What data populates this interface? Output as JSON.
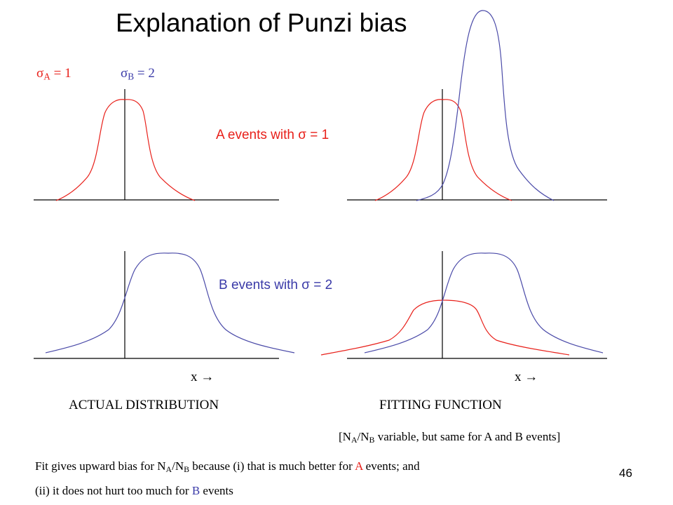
{
  "title": "Explanation of Punzi bias",
  "sigma_a": {
    "symbol": "σ",
    "sub": "A",
    "value": " = 1"
  },
  "sigma_b": {
    "symbol": "σ",
    "sub": "B",
    "value": " = 2"
  },
  "label_a_events": "A events with σ = 1",
  "label_b_events": "B events with σ  = 2",
  "x_arrow_left": "x  →",
  "x_arrow_right": "x  →",
  "caption_actual": "ACTUAL DISTRIBUTION",
  "caption_fitting": "FITTING FUNCTION",
  "note": {
    "open": "[N",
    "sub1": "A",
    "mid": "/N",
    "sub2": "B",
    "rest": " variable, but same for A and B events]"
  },
  "conclusion_line1": {
    "pre": "Fit gives upward bias for N",
    "sub1": "A",
    "mid": "/N",
    "sub2": "B",
    "post": " because  (i) that is much better for ",
    "hl": "A",
    "end": " events; and"
  },
  "conclusion_line2": {
    "pre": "(ii) it does not hurt too much for ",
    "hl": "B",
    "end": " events"
  },
  "page_number": "46",
  "colors": {
    "a_curve": "#e8201a",
    "b_curve": "#4a4aa8",
    "axis": "#000000"
  }
}
